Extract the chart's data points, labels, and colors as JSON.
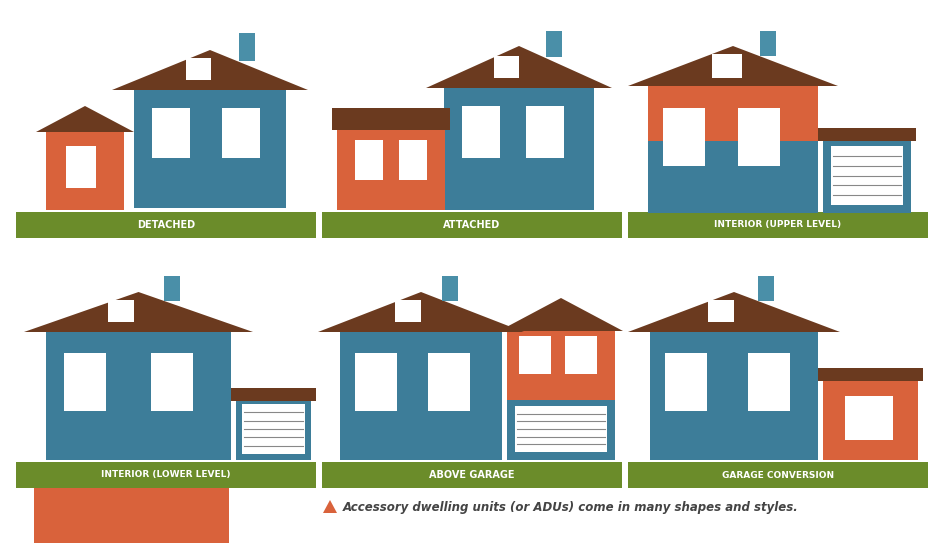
{
  "background_color": "#ffffff",
  "house_blue": "#3d7d99",
  "house_red": "#d9623b",
  "roof_brown": "#6b3a1f",
  "grass_green": "#6b8c2a",
  "chimney_color": "#4a8fa8",
  "label_text_color": "#ffffff",
  "caption_text_color": "#444444",
  "caption_triangle_color": "#d9623b",
  "labels": [
    "DETACHED",
    "ATTACHED",
    "INTERIOR (UPPER LEVEL)",
    "INTERIOR (LOWER LEVEL)",
    "ABOVE GARAGE",
    "GARAGE CONVERSION"
  ],
  "caption": "Accessory dwelling units (or ADUs) come in many shapes and styles."
}
